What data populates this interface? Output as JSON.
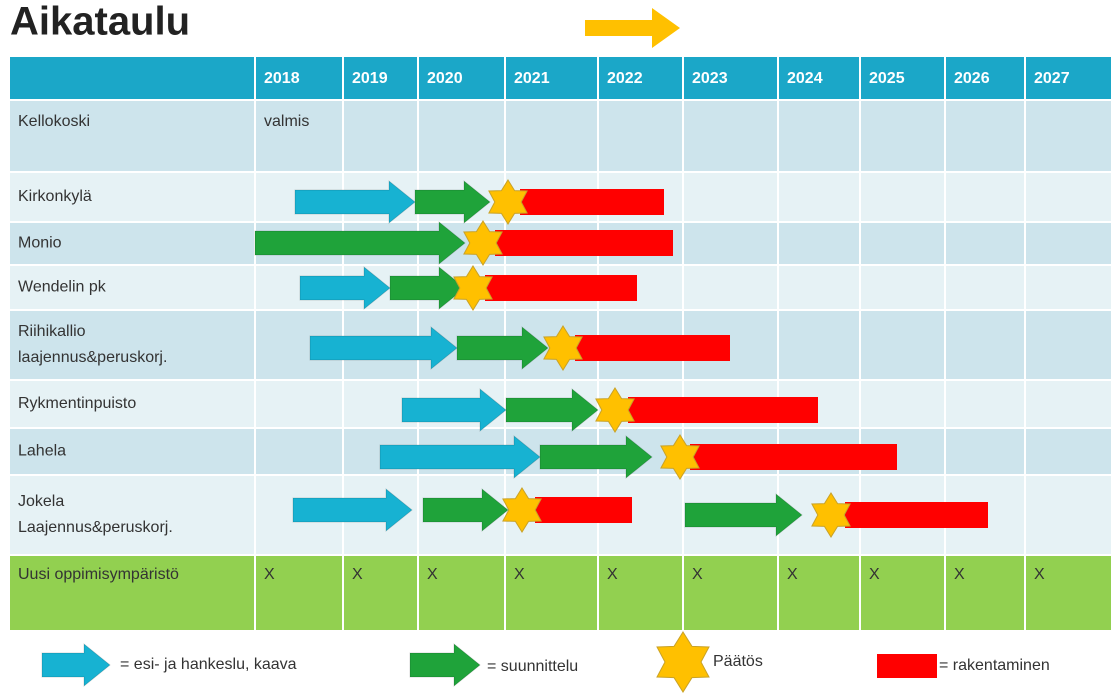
{
  "title": "Aikataulu",
  "table": {
    "years": [
      "2018",
      "2019",
      "2020",
      "2021",
      "2022",
      "2023",
      "2024",
      "2025",
      "2026",
      "2027"
    ],
    "rows": [
      {
        "label": [
          "Kellokoski"
        ],
        "note": "valmis"
      },
      {
        "label": [
          "Kirkonkylä"
        ]
      },
      {
        "label": [
          "Monio"
        ]
      },
      {
        "label": [
          "Wendelin pk"
        ]
      },
      {
        "label": [
          "Riihikallio",
          "laajennus&peruskorj."
        ]
      },
      {
        "label": [
          "Rykmentinpuisto"
        ]
      },
      {
        "label": [
          "Lahela"
        ]
      },
      {
        "label": [
          "Jokela",
          "Laajennus&peruskorj."
        ]
      }
    ],
    "summary": {
      "label": "Uusi oppimisympäristö",
      "marks": [
        "X",
        "X",
        "X",
        "X",
        "X",
        "X",
        "X",
        "X",
        "X",
        "X"
      ]
    }
  },
  "legend": [
    "= esi- ja hankeslu, kaava",
    "= suunnittelu",
    "Päätös",
    "= rakentaminen"
  ]
}
